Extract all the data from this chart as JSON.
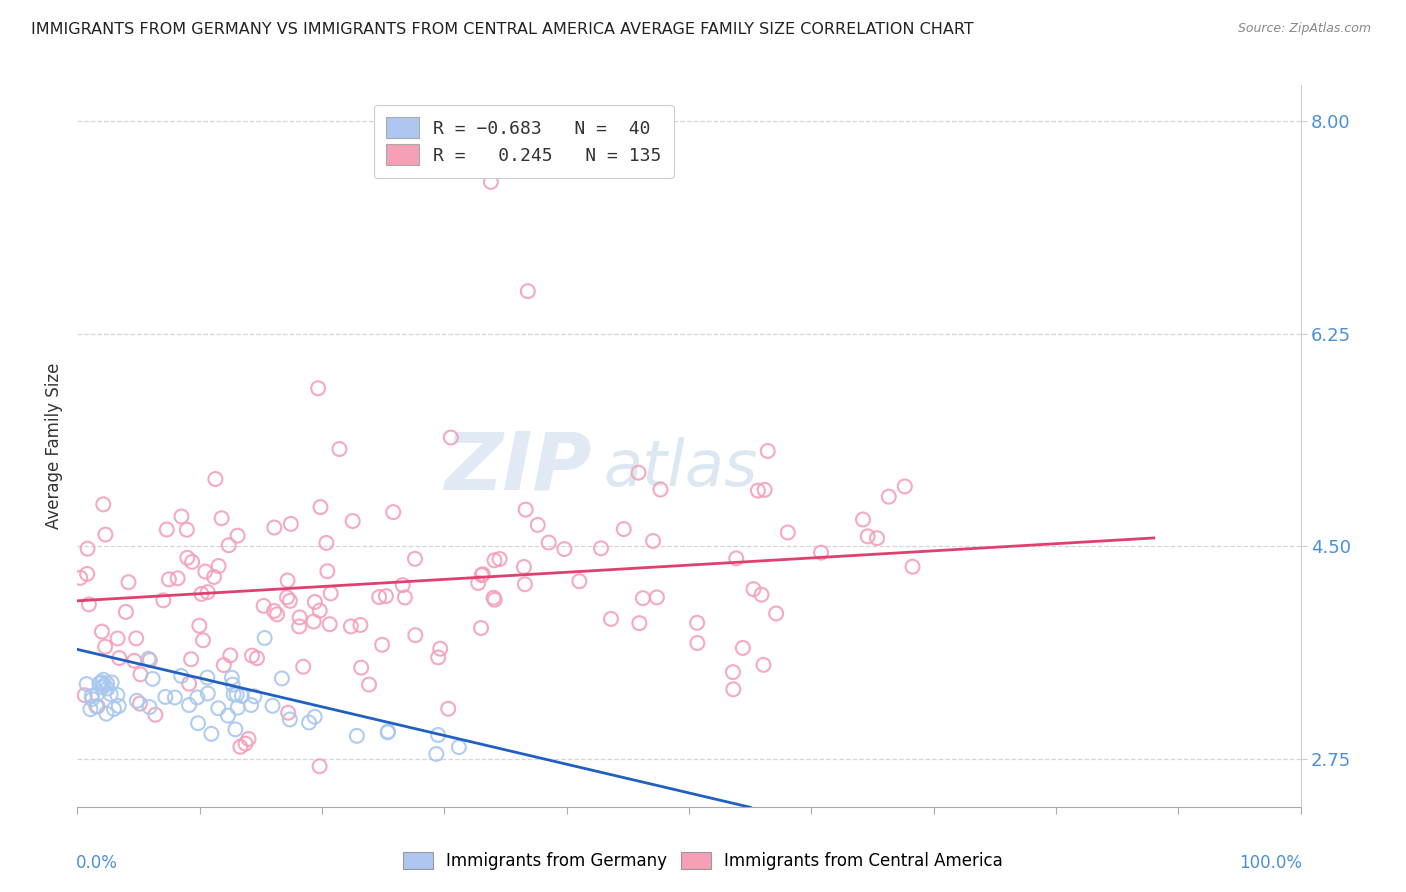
{
  "title": "IMMIGRANTS FROM GERMANY VS IMMIGRANTS FROM CENTRAL AMERICA AVERAGE FAMILY SIZE CORRELATION CHART",
  "source": "Source: ZipAtlas.com",
  "ylabel": "Average Family Size",
  "y_ticks_right": [
    2.75,
    4.5,
    6.25,
    8.0
  ],
  "legend_labels_bottom": [
    "Immigrants from Germany",
    "Immigrants from Central America"
  ],
  "germany_color": "#a8c8f0",
  "germany_edge": "#7aaae0",
  "central_america_color": "#f5a0b8",
  "central_america_edge": "#e06080",
  "germany_line_color": "#2060c0",
  "central_america_line_color": "#e04070",
  "germany_R": -0.683,
  "germany_N": 40,
  "central_america_R": 0.245,
  "central_america_N": 135,
  "watermark_zip": "ZIP",
  "watermark_atlas": "atlas",
  "background_color": "#ffffff",
  "grid_color": "#cccccc",
  "xlim": [
    0,
    1
  ],
  "ylim": [
    2.35,
    8.3
  ],
  "legend_box_color": "#aec6f0",
  "legend_box_color2": "#f5a0b5",
  "title_fontsize": 11.5,
  "source_fontsize": 9,
  "axis_label_color": "#4a90d9"
}
